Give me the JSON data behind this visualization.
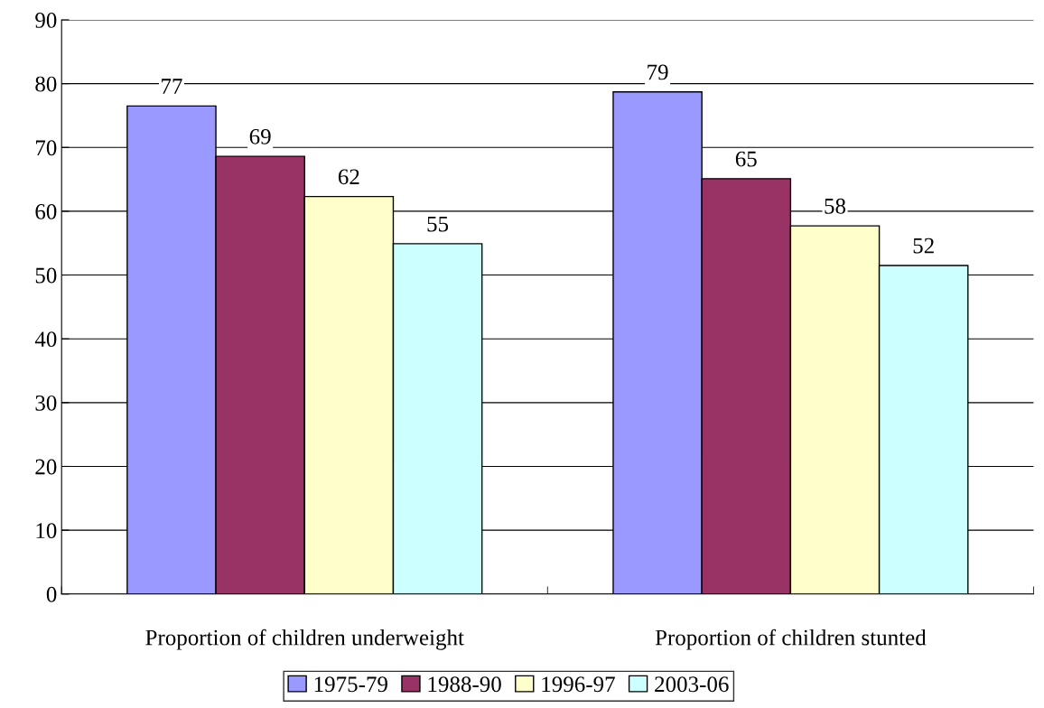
{
  "chart_data": {
    "type": "bar",
    "categories": [
      "Proportion of children underweight",
      "Proportion of children stunted"
    ],
    "series": [
      {
        "name": "1975-79",
        "color": "#9999ff",
        "values": [
          76.5,
          78.7
        ],
        "value_labels": [
          "77",
          "79"
        ]
      },
      {
        "name": "1988-90",
        "color": "#993366",
        "values": [
          68.6,
          65.1
        ],
        "value_labels": [
          "69",
          "65"
        ]
      },
      {
        "name": "1996-97",
        "color": "#ffffcc",
        "values": [
          62.3,
          57.7
        ],
        "value_labels": [
          "62",
          "58"
        ]
      },
      {
        "name": "2003-06",
        "color": "#ccffff",
        "values": [
          54.9,
          51.5
        ],
        "value_labels": [
          "55",
          "52"
        ]
      }
    ],
    "ylim": [
      0,
      90
    ],
    "yticks": [
      0,
      10,
      20,
      30,
      40,
      50,
      60,
      70,
      80,
      90
    ],
    "grid": "y",
    "legend": "bottom"
  }
}
